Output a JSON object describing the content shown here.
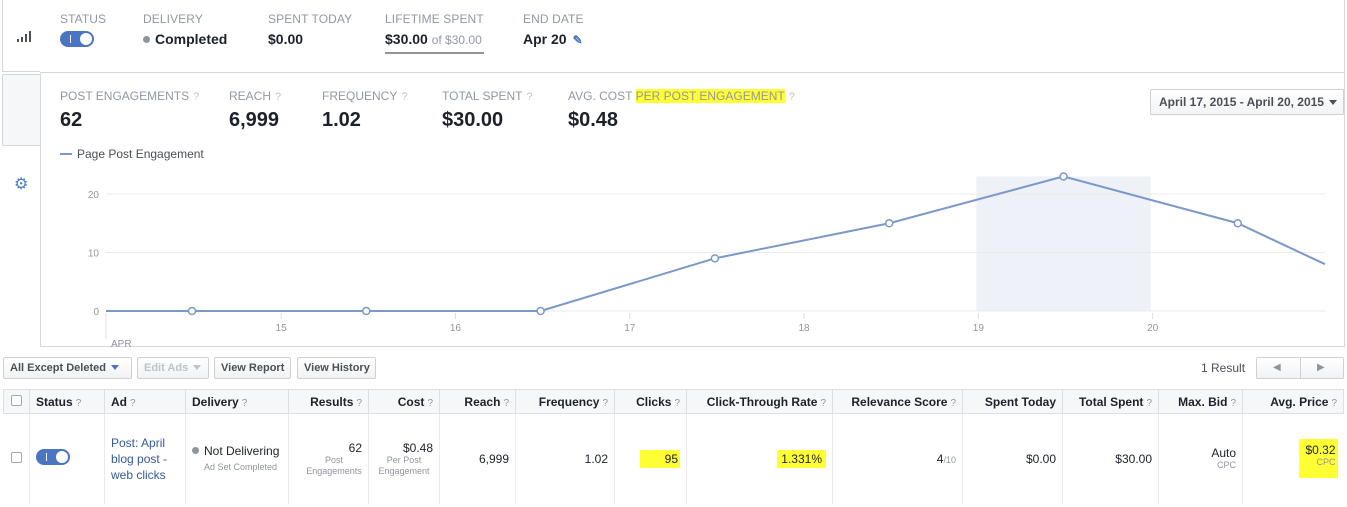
{
  "summary": {
    "status_label": "STATUS",
    "delivery_label": "DELIVERY",
    "delivery_value": "Completed",
    "spent_today_label": "SPENT TODAY",
    "spent_today_value": "$0.00",
    "lifetime_label": "LIFETIME SPENT",
    "lifetime_value": "$30.00",
    "lifetime_of": "of $30.00",
    "end_date_label": "END DATE",
    "end_date_value": "Apr 20"
  },
  "metrics": {
    "engagements_label": "POST ENGAGEMENTS",
    "engagements_value": "62",
    "reach_label": "REACH",
    "reach_value": "6,999",
    "frequency_label": "FREQUENCY",
    "frequency_value": "1.02",
    "total_spent_label": "TOTAL SPENT",
    "total_spent_value": "$30.00",
    "avg_cost_label": "AVG. COST",
    "avg_cost_label_hl": "PER POST ENGAGEMENT",
    "avg_cost_value": "$0.48",
    "help": "?"
  },
  "date_range": "April 17, 2015 - April 20, 2015",
  "chart_data": {
    "type": "line",
    "series": [
      {
        "name": "Page Post Engagement",
        "x": [
          "14",
          "15",
          "16",
          "17",
          "18",
          "19",
          "20"
        ],
        "values": [
          0,
          0,
          0,
          9,
          15,
          23,
          15
        ]
      }
    ],
    "x_ticks": [
      "15",
      "16",
      "17",
      "18",
      "19",
      "20"
    ],
    "x_start_label": "APR",
    "y_ticks": [
      0,
      10,
      20
    ],
    "ylim": [
      0,
      25
    ],
    "highlighted_x": "19",
    "line_color": "#7b98c9"
  },
  "toolbar": {
    "filter": "All Except Deleted",
    "edit_ads": "Edit Ads",
    "view_report": "View Report",
    "view_history": "View History",
    "results": "1 Result"
  },
  "table": {
    "headers": {
      "status": "Status",
      "ad": "Ad",
      "delivery": "Delivery",
      "results": "Results",
      "cost": "Cost",
      "reach": "Reach",
      "frequency": "Frequency",
      "clicks": "Clicks",
      "ctr": "Click-Through Rate",
      "relevance": "Relevance Score",
      "spent_today": "Spent Today",
      "total_spent": "Total Spent",
      "max_bid": "Max. Bid",
      "avg_price": "Avg. Price",
      "help": "?"
    },
    "row": {
      "ad_name": "Post: April blog post - web clicks",
      "delivery": "Not Delivering",
      "delivery_sub": "Ad Set Completed",
      "results": "62",
      "results_sub": "Post Engagements",
      "cost": "$0.48",
      "cost_sub": "Per Post Engagement",
      "reach": "6,999",
      "frequency": "1.02",
      "clicks": "95",
      "ctr": "1.331%",
      "relevance": "4",
      "relevance_sub": "/10",
      "spent_today": "$0.00",
      "total_spent": "$30.00",
      "max_bid": "Auto",
      "max_bid_sub": "CPC",
      "avg_price": "$0.32",
      "avg_price_sub": "CPC"
    }
  }
}
